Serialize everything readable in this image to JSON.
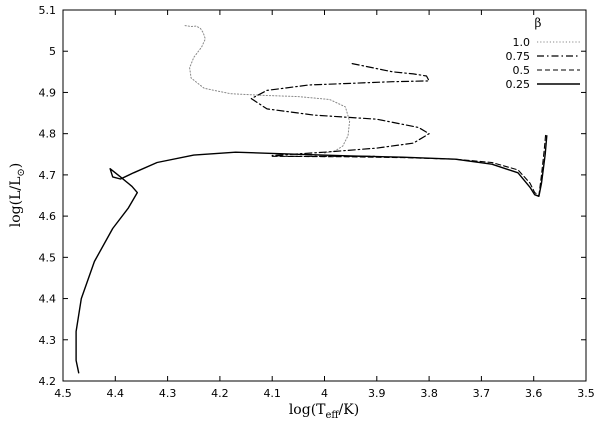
{
  "chart_data": {
    "type": "line",
    "xlabel": "log(T_eff/K)",
    "ylabel": "log(L/L⊙)",
    "xlim": [
      4.5,
      3.5
    ],
    "ylim": [
      4.2,
      5.1
    ],
    "x_reversed": true,
    "x_ticks": [
      4.5,
      4.4,
      4.3,
      4.2,
      4.1,
      4.0,
      3.9,
      3.8,
      3.7,
      3.6,
      3.5
    ],
    "x_tick_labels": [
      "4.5",
      "4.4",
      "4.3",
      "4.2",
      "4.1",
      "4",
      "3.9",
      "3.8",
      "3.7",
      "3.6",
      "3.5"
    ],
    "y_ticks": [
      4.2,
      4.3,
      4.4,
      4.5,
      4.6,
      4.7,
      4.8,
      4.9,
      5.0,
      5.1
    ],
    "y_tick_labels": [
      "4.2",
      "4.3",
      "4.4",
      "4.5",
      "4.6",
      "4.7",
      "4.8",
      "4.9",
      "5",
      "5.1"
    ],
    "grid": false,
    "legend": {
      "title": "β",
      "placement": "top-right"
    },
    "series": [
      {
        "name": "1.0",
        "dash": "dotted",
        "color": "#888888",
        "points": [
          [
            4.0,
            4.753
          ],
          [
            3.98,
            4.758
          ],
          [
            3.965,
            4.77
          ],
          [
            3.955,
            4.795
          ],
          [
            3.952,
            4.83
          ],
          [
            3.96,
            4.865
          ],
          [
            3.99,
            4.883
          ],
          [
            4.05,
            4.89
          ],
          [
            4.12,
            4.893
          ],
          [
            4.18,
            4.897
          ],
          [
            4.23,
            4.91
          ],
          [
            4.255,
            4.935
          ],
          [
            4.258,
            4.96
          ],
          [
            4.25,
            4.985
          ],
          [
            4.235,
            5.01
          ],
          [
            4.228,
            5.03
          ],
          [
            4.232,
            5.045
          ],
          [
            4.237,
            5.055
          ],
          [
            4.245,
            5.061
          ],
          [
            4.255,
            5.06
          ],
          [
            4.27,
            5.063
          ]
        ]
      },
      {
        "name": "0.75",
        "dash": "dashdot",
        "color": "#000000",
        "points": [
          [
            3.947,
            4.97
          ],
          [
            3.87,
            4.95
          ],
          [
            3.83,
            4.945
          ],
          [
            3.805,
            4.94
          ],
          [
            3.8,
            4.928
          ],
          [
            3.87,
            4.926
          ],
          [
            4.03,
            4.918
          ],
          [
            4.11,
            4.905
          ],
          [
            4.14,
            4.885
          ],
          [
            4.11,
            4.86
          ],
          [
            4.02,
            4.845
          ],
          [
            3.9,
            4.835
          ],
          [
            3.82,
            4.815
          ],
          [
            3.8,
            4.8
          ],
          [
            3.83,
            4.777
          ],
          [
            3.9,
            4.765
          ],
          [
            4.0,
            4.755
          ],
          [
            4.1,
            4.747
          ],
          [
            4.07,
            4.745
          ],
          [
            3.9,
            4.745
          ]
        ]
      },
      {
        "name": "0.5",
        "dash": "dashed",
        "color": "#000000",
        "points": [
          [
            4.1,
            4.745
          ],
          [
            3.95,
            4.744
          ],
          [
            3.85,
            4.742
          ],
          [
            3.75,
            4.738
          ],
          [
            3.68,
            4.73
          ],
          [
            3.63,
            4.712
          ],
          [
            3.607,
            4.68
          ],
          [
            3.598,
            4.657
          ],
          [
            3.59,
            4.65
          ],
          [
            3.585,
            4.7
          ],
          [
            3.58,
            4.76
          ],
          [
            3.577,
            4.8
          ]
        ]
      },
      {
        "name": "0.25",
        "dash": "solid",
        "color": "#000000",
        "points": [
          [
            4.47,
            4.22
          ],
          [
            4.475,
            4.25
          ],
          [
            4.475,
            4.32
          ],
          [
            4.465,
            4.4
          ],
          [
            4.44,
            4.49
          ],
          [
            4.405,
            4.57
          ],
          [
            4.375,
            4.62
          ],
          [
            4.358,
            4.657
          ],
          [
            4.368,
            4.672
          ],
          [
            4.39,
            4.695
          ],
          [
            4.41,
            4.715
          ],
          [
            4.405,
            4.695
          ],
          [
            4.39,
            4.69
          ],
          [
            4.365,
            4.705
          ],
          [
            4.32,
            4.73
          ],
          [
            4.25,
            4.748
          ],
          [
            4.17,
            4.755
          ],
          [
            4.05,
            4.75
          ],
          [
            3.95,
            4.746
          ],
          [
            3.85,
            4.743
          ],
          [
            3.75,
            4.738
          ],
          [
            3.68,
            4.726
          ],
          [
            3.63,
            4.705
          ],
          [
            3.607,
            4.67
          ],
          [
            3.598,
            4.652
          ],
          [
            3.59,
            4.648
          ],
          [
            3.585,
            4.68
          ],
          [
            3.578,
            4.75
          ],
          [
            3.575,
            4.795
          ]
        ]
      }
    ]
  }
}
